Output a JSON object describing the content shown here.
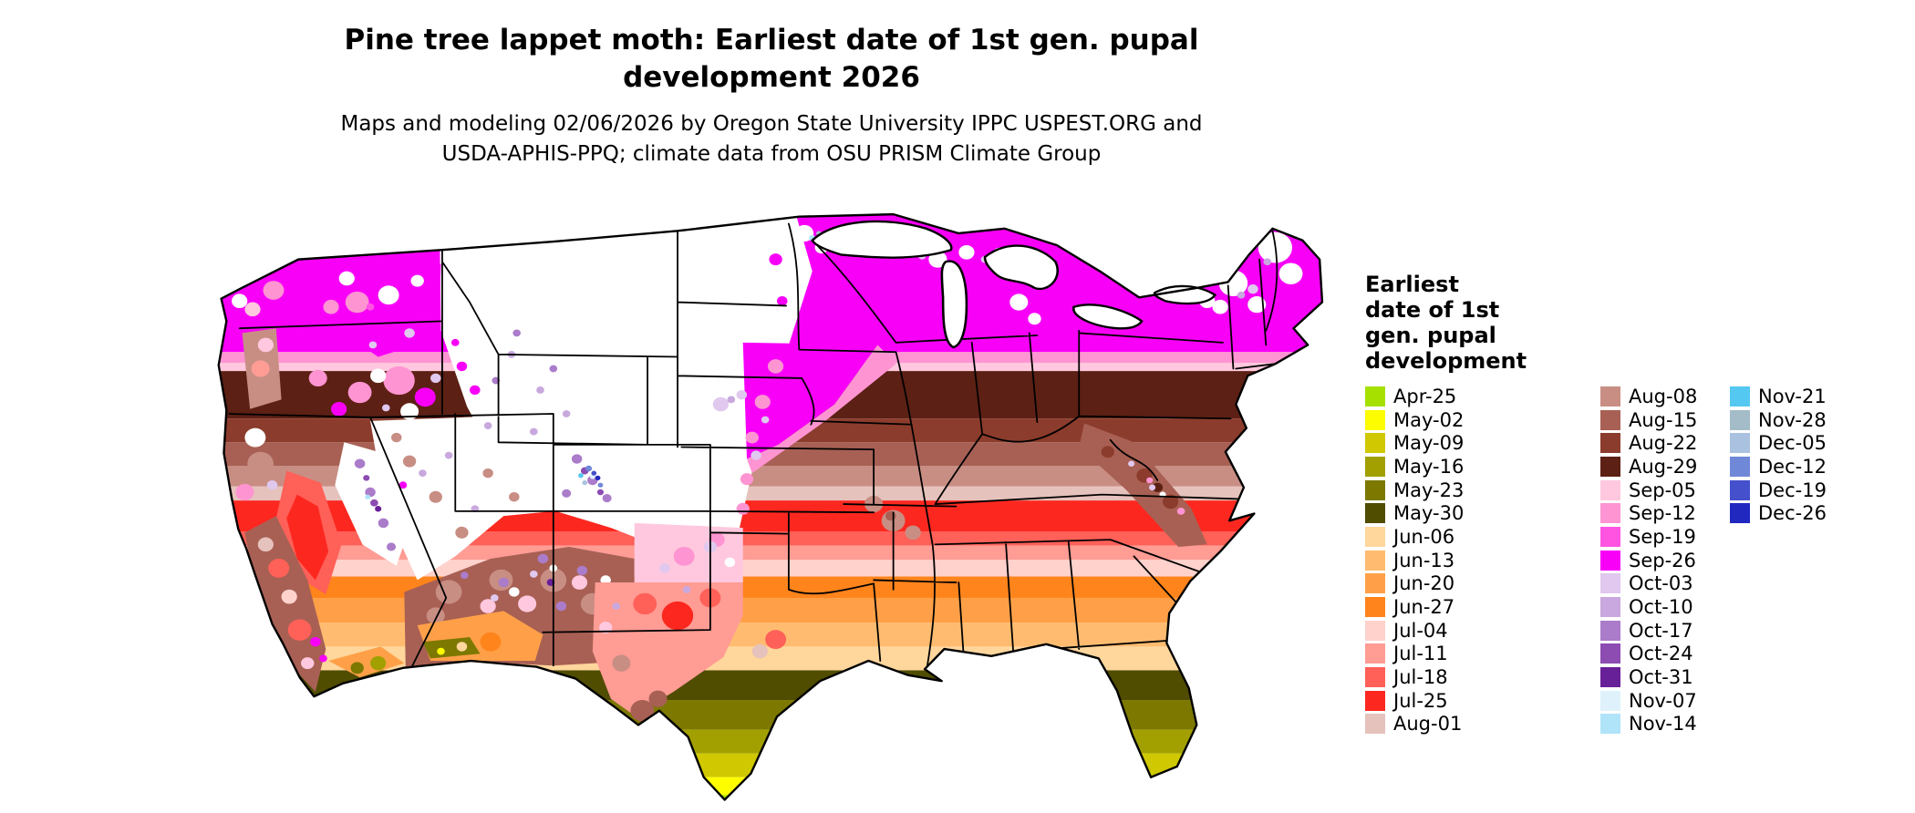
{
  "title": {
    "line1": "Pine tree lappet moth: Earliest date of 1st gen. pupal",
    "line2": "development 2026"
  },
  "subtitle": {
    "line1": "Maps and modeling 02/06/2026 by Oregon State University IPPC USPEST.ORG and",
    "line2": "USDA-APHIS-PPQ; climate data from OSU PRISM Climate Group"
  },
  "legend": {
    "title_lines": [
      "Earliest",
      "date of 1st",
      "gen. pupal",
      "development"
    ],
    "columns": [
      15,
      15,
      6
    ],
    "entries": [
      {
        "label": "Apr-25",
        "color": "#a6e000"
      },
      {
        "label": "May-02",
        "color": "#fdfd00"
      },
      {
        "label": "May-09",
        "color": "#d0c800"
      },
      {
        "label": "May-16",
        "color": "#a2a000"
      },
      {
        "label": "May-23",
        "color": "#7c7800"
      },
      {
        "label": "May-30",
        "color": "#504c00"
      },
      {
        "label": "Jun-06",
        "color": "#ffd69c"
      },
      {
        "label": "Jun-13",
        "color": "#ffbc70"
      },
      {
        "label": "Jun-20",
        "color": "#ffa048"
      },
      {
        "label": "Jun-27",
        "color": "#ff841c"
      },
      {
        "label": "Jul-04",
        "color": "#ffd2cc"
      },
      {
        "label": "Jul-11",
        "color": "#ff9c94"
      },
      {
        "label": "Jul-18",
        "color": "#ff6058"
      },
      {
        "label": "Jul-25",
        "color": "#fc2820"
      },
      {
        "label": "Aug-01",
        "color": "#e6c2bc"
      },
      {
        "label": "Aug-08",
        "color": "#c88e84"
      },
      {
        "label": "Aug-15",
        "color": "#a86054"
      },
      {
        "label": "Aug-22",
        "color": "#8c3c2c"
      },
      {
        "label": "Aug-29",
        "color": "#5c2014"
      },
      {
        "label": "Sep-05",
        "color": "#ffc8de"
      },
      {
        "label": "Sep-12",
        "color": "#ff94d2"
      },
      {
        "label": "Sep-19",
        "color": "#ff54e2"
      },
      {
        "label": "Sep-26",
        "color": "#f800f8"
      },
      {
        "label": "Oct-03",
        "color": "#e0c8ee"
      },
      {
        "label": "Oct-10",
        "color": "#c8a8de"
      },
      {
        "label": "Oct-17",
        "color": "#aa7cca"
      },
      {
        "label": "Oct-24",
        "color": "#8c4cb2"
      },
      {
        "label": "Oct-31",
        "color": "#682098"
      },
      {
        "label": "Nov-07",
        "color": "#dff2fb"
      },
      {
        "label": "Nov-14",
        "color": "#b0e4f8"
      },
      {
        "label": "Nov-21",
        "color": "#54c8f0"
      },
      {
        "label": "Nov-28",
        "color": "#a4bcc8"
      },
      {
        "label": "Dec-05",
        "color": "#aac2e0"
      },
      {
        "label": "Dec-12",
        "color": "#7088d8"
      },
      {
        "label": "Dec-19",
        "color": "#4450cc"
      },
      {
        "label": "Dec-26",
        "color": "#2028c0"
      }
    ]
  },
  "map": {
    "region": "Contiguous United States",
    "no_data_color": "#ffffff",
    "border_color": "#000000",
    "water_color": "#ffffff"
  }
}
